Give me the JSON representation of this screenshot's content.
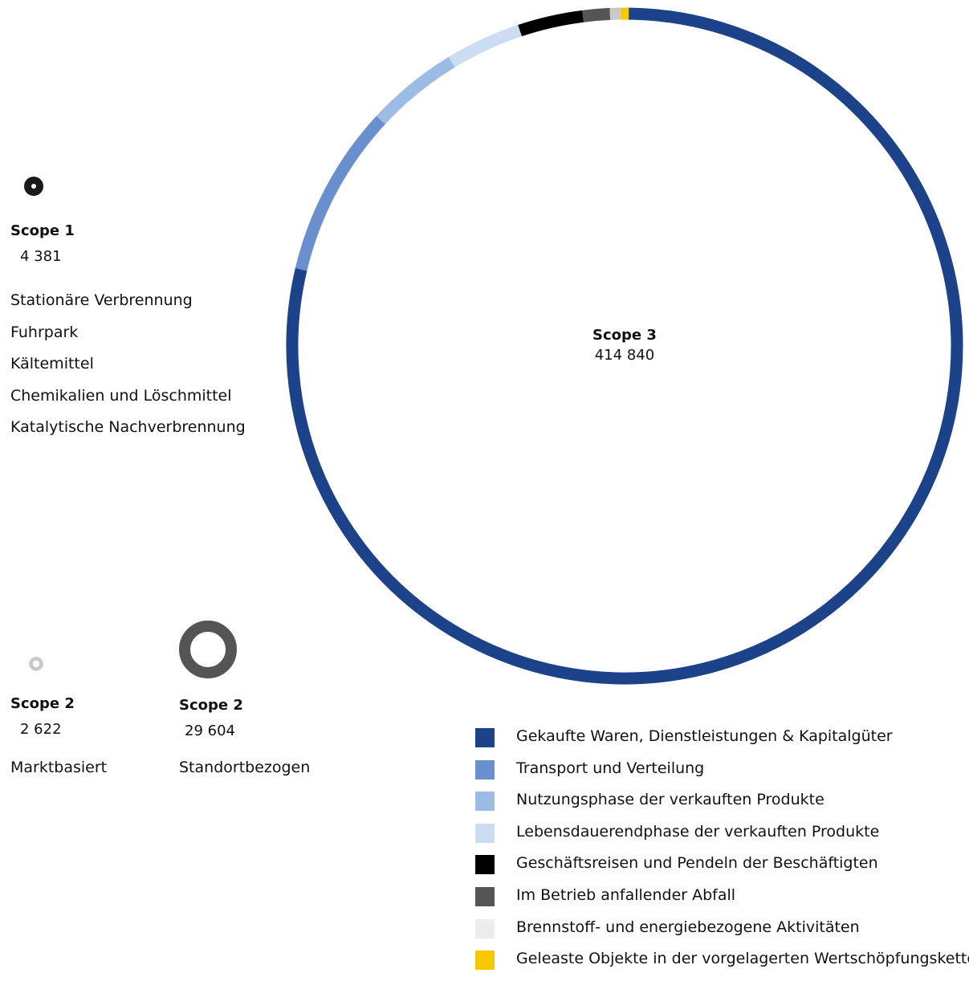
{
  "chart_data": [
    {
      "type": "pie",
      "title": "Scope 1",
      "value_label": "4 381",
      "value": 4381,
      "color": "#1a1a1a",
      "categories": [
        "Stationäre Verbrennung",
        "Fuhrpark",
        "Kältemittel",
        "Chemikalien und Löschmittel",
        "Katalytische Nachverbrennung"
      ]
    },
    {
      "type": "pie",
      "title": "Scope 2",
      "value_label": "2 622",
      "value": 2622,
      "subtitle": "Marktbasiert",
      "color": "#c8c8c8"
    },
    {
      "type": "pie",
      "title": "Scope 2",
      "value_label": "29 604",
      "value": 29604,
      "subtitle": "Standortbezogen",
      "color": "#555555"
    },
    {
      "type": "pie",
      "title": "Scope 3",
      "value_label": "414 840",
      "value": 414840,
      "series": [
        {
          "name": "Gekaufte Waren, Dienstleistungen & Kapitalgüter",
          "share": 0.787,
          "color": "#1c4289"
        },
        {
          "name": "Transport und Verteilung",
          "share": 0.082,
          "color": "#6a8fce"
        },
        {
          "name": "Nutzungsphase der verkauften Produkte",
          "share": 0.044,
          "color": "#9cbce6"
        },
        {
          "name": "Lebensdauerendphase der verkauften Produkte",
          "share": 0.036,
          "color": "#ccdcf2"
        },
        {
          "name": "Geschäftsreisen und Pendeln der Beschäftigten",
          "share": 0.031,
          "color": "#000000"
        },
        {
          "name": "Im Betrieb anfallender Abfall",
          "share": 0.013,
          "color": "#555555"
        },
        {
          "name": "Brennstoff- und energiebezogene Aktivitäten",
          "share": 0.005,
          "color": "#c9c9c9"
        },
        {
          "name": "Geleaste Objekte in der vorgelagerten Wertschöpfungskette",
          "share": 0.004,
          "color": "#f7c700"
        }
      ]
    }
  ],
  "legend": {
    "items": [
      {
        "label": "Gekaufte Waren, Dienstleistungen & Kapitalgüter",
        "color": "#1c4289"
      },
      {
        "label": "Transport und Verteilung",
        "color": "#6a8fce"
      },
      {
        "label": "Nutzungsphase der verkauften Produkte",
        "color": "#9cbce6"
      },
      {
        "label": "Lebensdauerendphase der verkauften Produkte",
        "color": "#ccdcf2"
      },
      {
        "label": "Geschäftsreisen und Pendeln der Beschäftigten",
        "color": "#000000"
      },
      {
        "label": "Im Betrieb anfallender Abfall",
        "color": "#555555"
      },
      {
        "label": "Brennstoff- und energiebezogene Aktivitäten",
        "color": "#ececec"
      },
      {
        "label": "Geleaste Objekte in der vorgelagerten Wertschöpfungskette",
        "color": "#f7c700"
      }
    ]
  }
}
